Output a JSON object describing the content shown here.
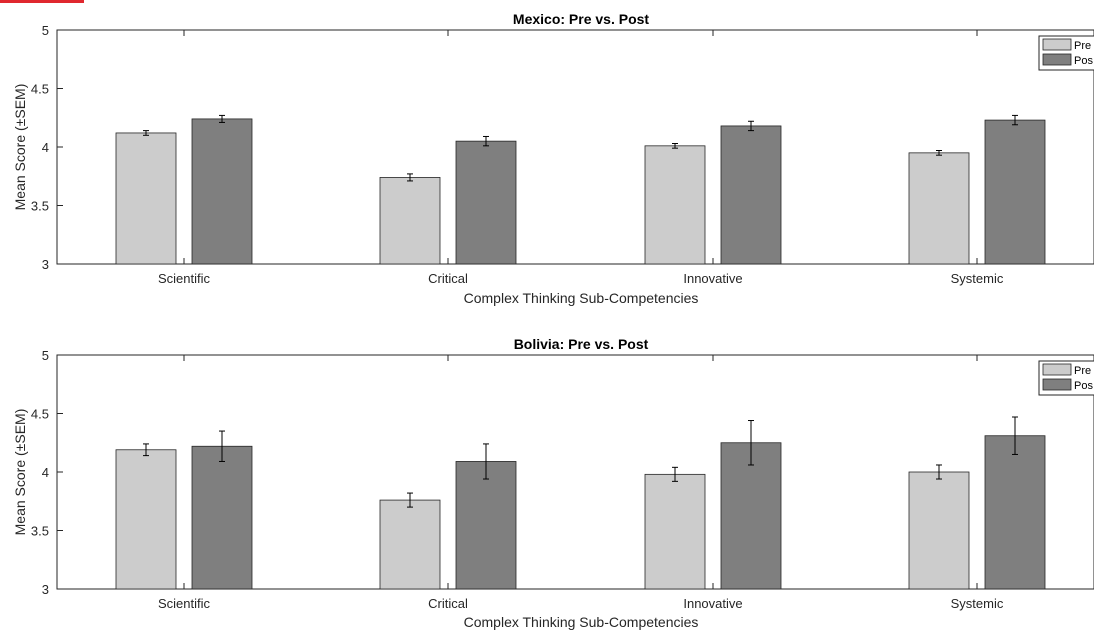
{
  "colors": {
    "pre": "#cccccc",
    "post": "#7f7f7f",
    "accent": "#e0282e"
  },
  "chart_data": [
    {
      "type": "bar",
      "title": "Mexico: Pre vs. Post",
      "xlabel": "Complex Thinking Sub-Competencies",
      "ylabel": "Mean Score (±SEM)",
      "ylim": [
        3,
        5
      ],
      "yticks": [
        "3",
        "3.5",
        "4",
        "4.5",
        "5"
      ],
      "categories": [
        "Scientific",
        "Critical",
        "Innovative",
        "Systemic"
      ],
      "legend": {
        "position": "top-right",
        "entries": [
          "Pre",
          "Pos"
        ]
      },
      "series": [
        {
          "name": "Pre",
          "values": [
            4.12,
            3.74,
            4.01,
            3.95
          ],
          "sem": [
            0.02,
            0.03,
            0.02,
            0.02
          ]
        },
        {
          "name": "Post",
          "values": [
            4.24,
            4.05,
            4.18,
            4.23
          ],
          "sem": [
            0.03,
            0.04,
            0.04,
            0.04
          ]
        }
      ]
    },
    {
      "type": "bar",
      "title": "Bolivia: Pre vs. Post",
      "xlabel": "Complex Thinking Sub-Competencies",
      "ylabel": "Mean Score (±SEM)",
      "ylim": [
        3,
        5
      ],
      "yticks": [
        "3",
        "3.5",
        "4",
        "4.5",
        "5"
      ],
      "categories": [
        "Scientific",
        "Critical",
        "Innovative",
        "Systemic"
      ],
      "legend": {
        "position": "top-right",
        "entries": [
          "Pre",
          "Pos"
        ]
      },
      "series": [
        {
          "name": "Pre",
          "values": [
            4.19,
            3.76,
            3.98,
            4.0
          ],
          "sem": [
            0.05,
            0.06,
            0.06,
            0.06
          ]
        },
        {
          "name": "Post",
          "values": [
            4.22,
            4.09,
            4.25,
            4.31
          ],
          "sem": [
            0.13,
            0.15,
            0.19,
            0.16
          ]
        }
      ]
    }
  ]
}
